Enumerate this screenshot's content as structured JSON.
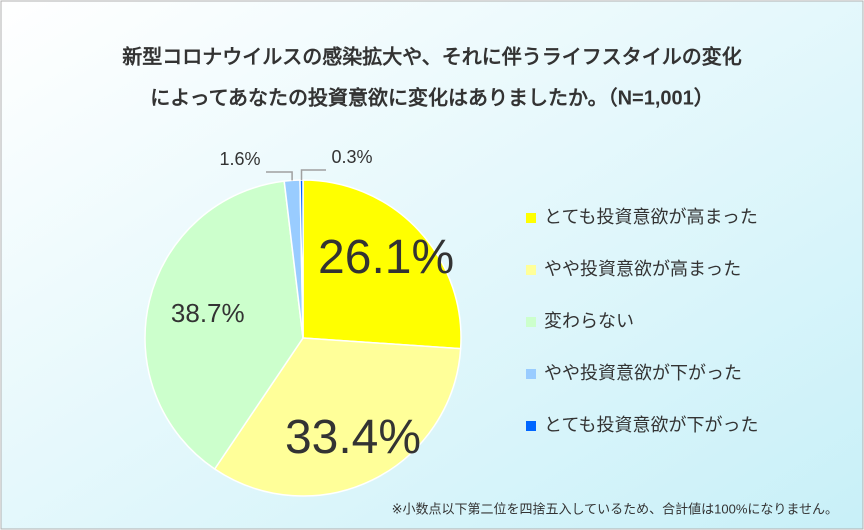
{
  "chart_data": {
    "type": "pie",
    "title": [
      "新型コロナウイルスの感染拡大や、それに伴うライフスタイルの変化",
      "によってあなたの投資意欲に変化はありましたか。（N=1,001）"
    ],
    "categories": [
      "とても投資意欲が高まった",
      "やや投資意欲が高まった",
      "変わらない",
      "やや投資意欲が下がった",
      "とても投資意欲が下がった"
    ],
    "values": [
      26.1,
      33.4,
      38.7,
      1.6,
      0.3
    ],
    "value_labels": [
      "26.1%",
      "33.4%",
      "38.7%",
      "1.6%",
      "0.3%"
    ],
    "colors": [
      "#ffff00",
      "#ffff99",
      "#ccffcc",
      "#99ccff",
      "#0066ff"
    ],
    "legend": "right",
    "note": "※小数点以下第二位を四捨五入しているため、合計値は100%になりません。"
  }
}
